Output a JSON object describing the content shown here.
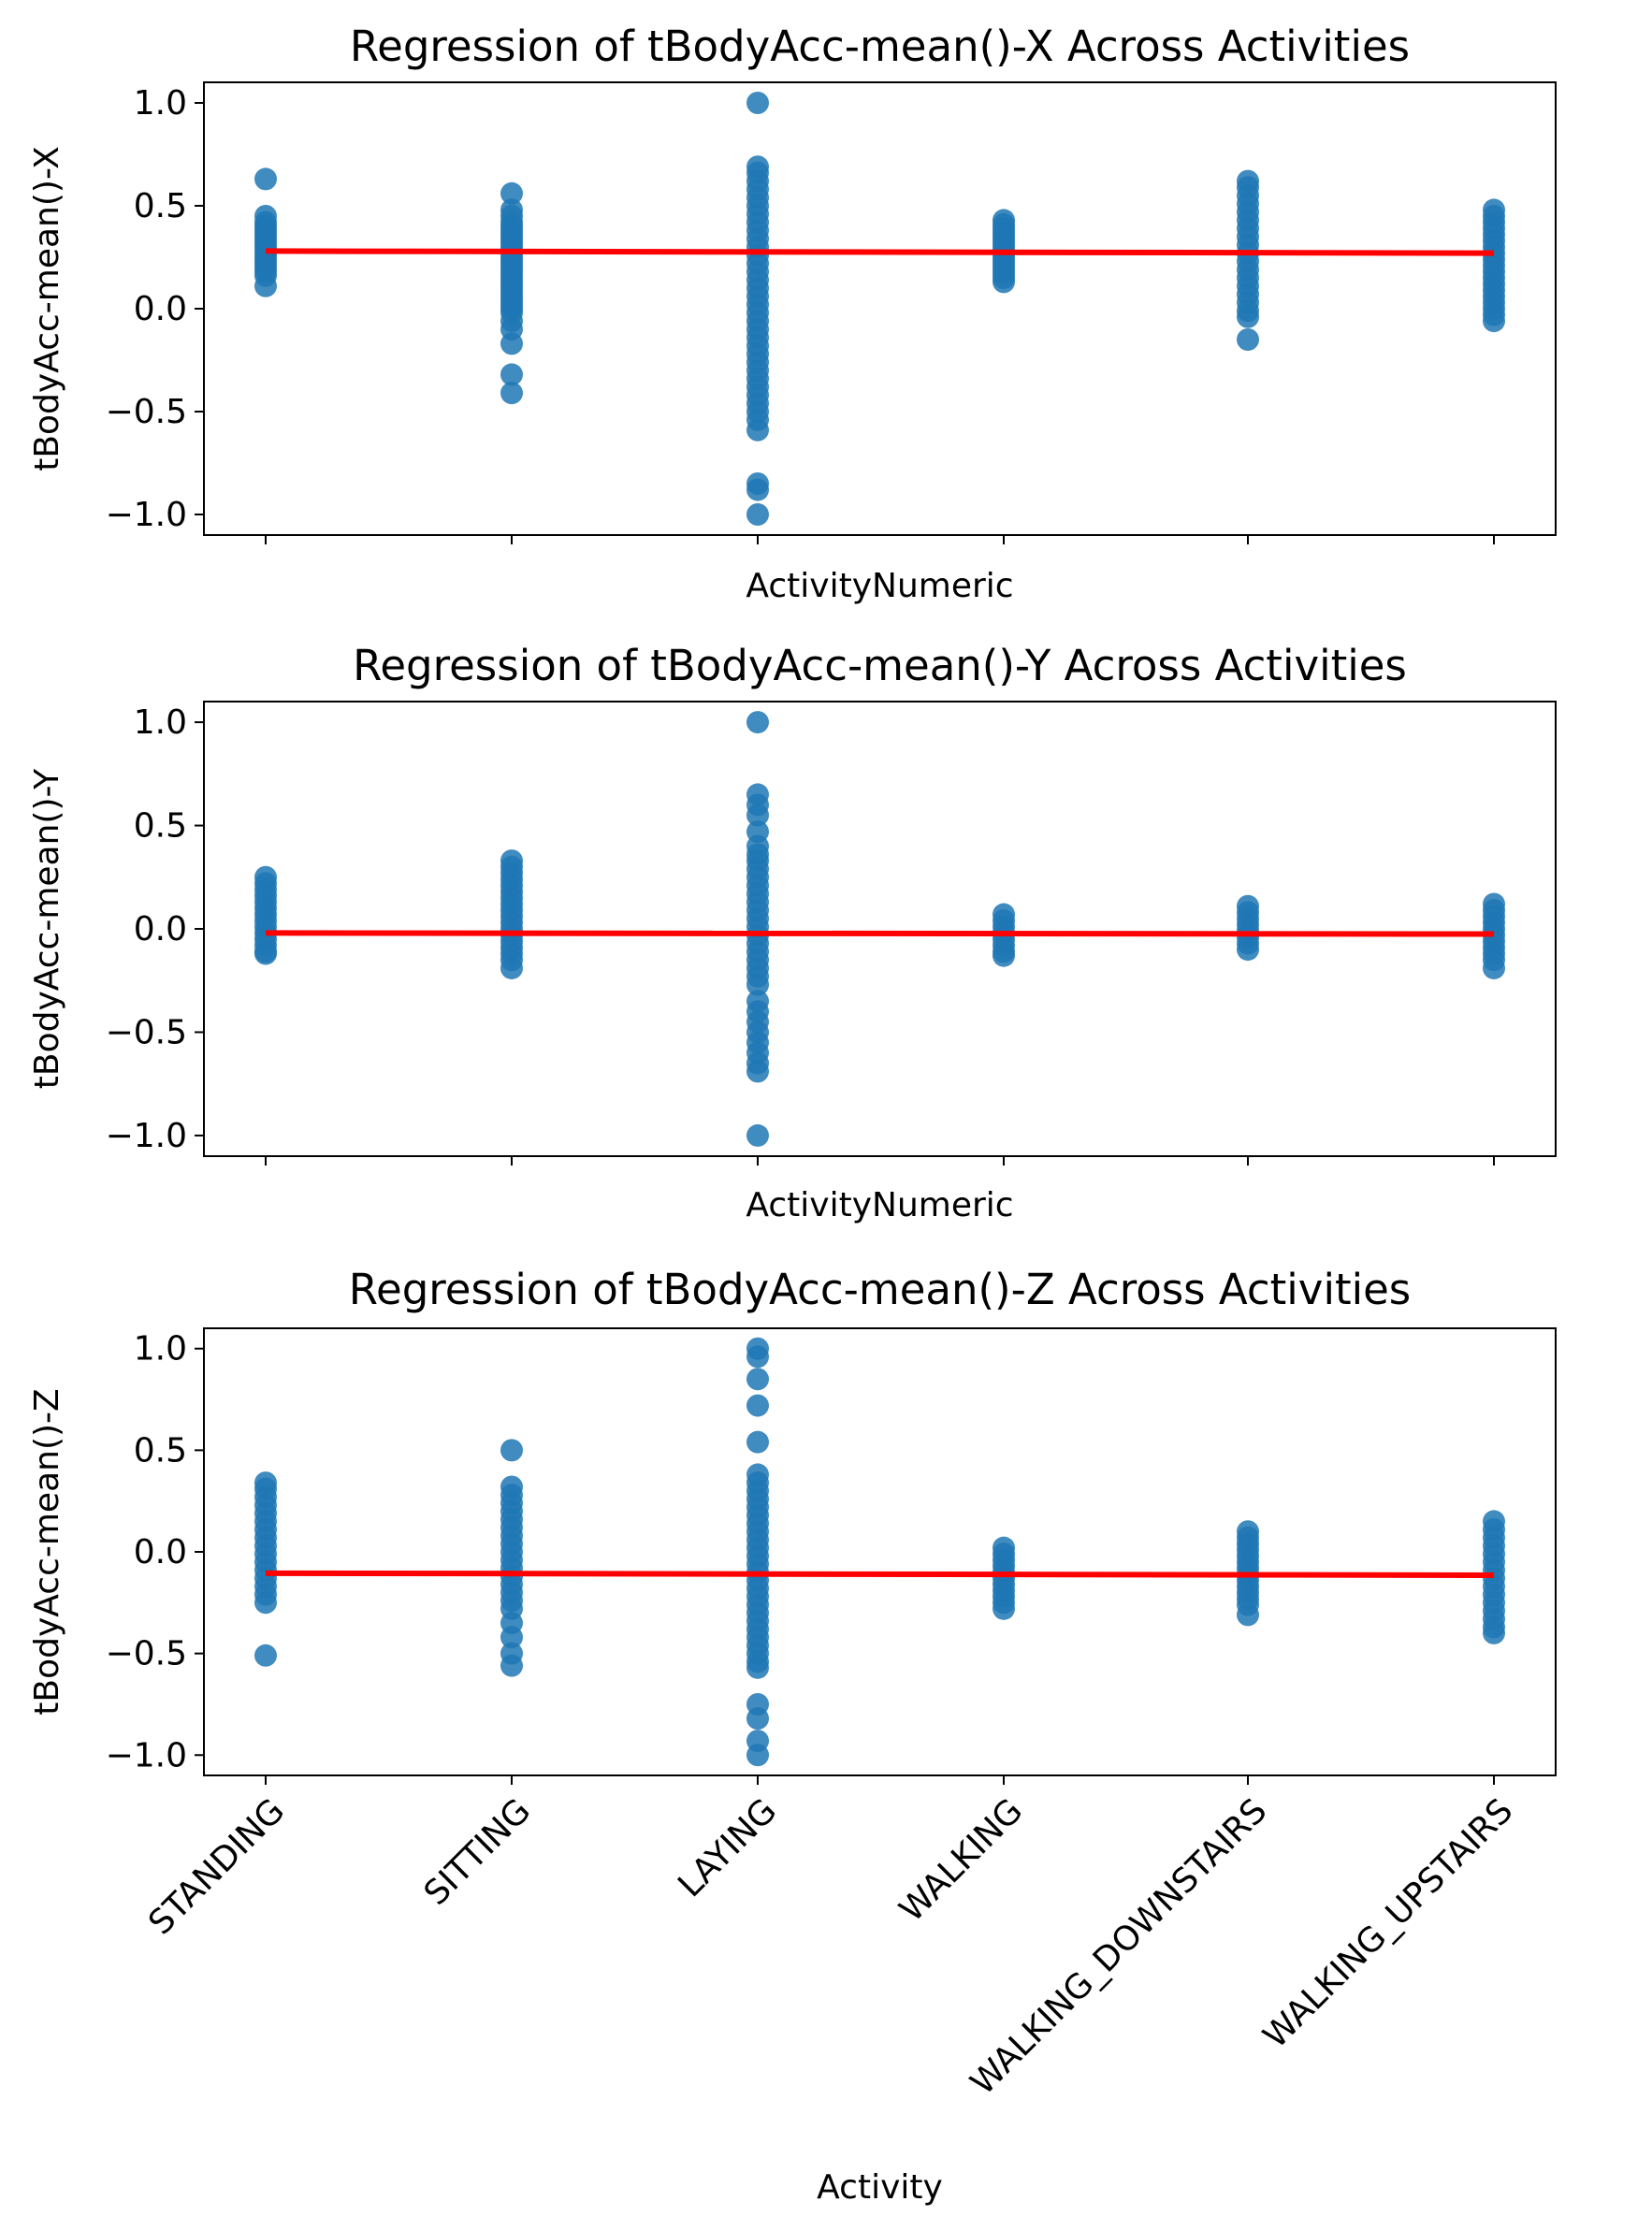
{
  "colors": {
    "points": "#1f77b4",
    "regression_line": "#ff0000",
    "axes": "#000000",
    "background": "#ffffff"
  },
  "chart_data": [
    {
      "type": "scatter",
      "title": "Regression of tBodyAcc-mean()-X Across Activities",
      "xlabel": "ActivityNumeric",
      "ylabel": "tBodyAcc-mean()-X",
      "categories": [
        "STANDING",
        "SITTING",
        "LAYING",
        "WALKING",
        "WALKING_DOWNSTAIRS",
        "WALKING_UPSTAIRS"
      ],
      "show_category_labels": false,
      "ylim": [
        -1.1,
        1.1
      ],
      "yticks": [
        -1.0,
        -0.5,
        0.0,
        0.5,
        1.0
      ],
      "ytick_labels": [
        "−1.0",
        "−0.5",
        "0.0",
        "0.5",
        "1.0"
      ],
      "grid": false,
      "points_by_category": [
        [
          0.63,
          0.45,
          0.42,
          0.4,
          0.38,
          0.36,
          0.34,
          0.32,
          0.3,
          0.28,
          0.26,
          0.24,
          0.22,
          0.2,
          0.18,
          0.16,
          0.11
        ],
        [
          0.56,
          0.48,
          0.45,
          0.42,
          0.4,
          0.38,
          0.36,
          0.34,
          0.32,
          0.3,
          0.28,
          0.26,
          0.24,
          0.22,
          0.2,
          0.18,
          0.16,
          0.14,
          0.12,
          0.1,
          0.08,
          0.06,
          0.04,
          0.02,
          0.0,
          -0.02,
          -0.06,
          -0.1,
          -0.17,
          -0.32,
          -0.41
        ],
        [
          1.0,
          0.69,
          0.66,
          0.62,
          0.58,
          0.54,
          0.5,
          0.46,
          0.42,
          0.38,
          0.34,
          0.3,
          0.26,
          0.22,
          0.18,
          0.14,
          0.1,
          0.06,
          0.02,
          -0.02,
          -0.06,
          -0.1,
          -0.14,
          -0.18,
          -0.22,
          -0.26,
          -0.3,
          -0.34,
          -0.38,
          -0.42,
          -0.46,
          -0.5,
          -0.54,
          -0.59,
          -0.85,
          -0.88,
          -1.0
        ],
        [
          0.43,
          0.41,
          0.39,
          0.37,
          0.35,
          0.33,
          0.31,
          0.29,
          0.27,
          0.25,
          0.23,
          0.21,
          0.19,
          0.17,
          0.15,
          0.13
        ],
        [
          0.62,
          0.59,
          0.55,
          0.51,
          0.47,
          0.43,
          0.39,
          0.35,
          0.31,
          0.27,
          0.23,
          0.19,
          0.15,
          0.11,
          0.07,
          0.03,
          -0.01,
          -0.04,
          -0.15
        ],
        [
          0.48,
          0.45,
          0.42,
          0.39,
          0.36,
          0.33,
          0.3,
          0.27,
          0.24,
          0.21,
          0.18,
          0.15,
          0.12,
          0.09,
          0.06,
          0.03,
          0.0,
          -0.03,
          -0.06
        ]
      ],
      "regression": {
        "y_start": 0.28,
        "y_end": 0.27
      }
    },
    {
      "type": "scatter",
      "title": "Regression of tBodyAcc-mean()-Y Across Activities",
      "xlabel": "ActivityNumeric",
      "ylabel": "tBodyAcc-mean()-Y",
      "categories": [
        "STANDING",
        "SITTING",
        "LAYING",
        "WALKING",
        "WALKING_DOWNSTAIRS",
        "WALKING_UPSTAIRS"
      ],
      "show_category_labels": false,
      "ylim": [
        -1.1,
        1.1
      ],
      "yticks": [
        -1.0,
        -0.5,
        0.0,
        0.5,
        1.0
      ],
      "ytick_labels": [
        "−1.0",
        "−0.5",
        "0.0",
        "0.5",
        "1.0"
      ],
      "grid": false,
      "points_by_category": [
        [
          0.25,
          0.22,
          0.19,
          0.16,
          0.13,
          0.1,
          0.07,
          0.04,
          0.01,
          -0.02,
          -0.05,
          -0.08,
          -0.11,
          -0.12
        ],
        [
          0.33,
          0.3,
          0.27,
          0.24,
          0.21,
          0.18,
          0.15,
          0.12,
          0.09,
          0.06,
          0.03,
          0.0,
          -0.03,
          -0.06,
          -0.09,
          -0.12,
          -0.15,
          -0.19
        ],
        [
          1.0,
          0.65,
          0.6,
          0.55,
          0.47,
          0.4,
          0.36,
          0.33,
          0.29,
          0.25,
          0.21,
          0.17,
          0.13,
          0.09,
          0.05,
          0.01,
          -0.03,
          -0.07,
          -0.11,
          -0.15,
          -0.19,
          -0.23,
          -0.27,
          -0.35,
          -0.4,
          -0.45,
          -0.5,
          -0.55,
          -0.6,
          -0.65,
          -0.69,
          -1.0
        ],
        [
          0.07,
          0.04,
          0.01,
          -0.02,
          -0.05,
          -0.08,
          -0.11,
          -0.13
        ],
        [
          0.11,
          0.08,
          0.05,
          0.02,
          -0.01,
          -0.04,
          -0.07,
          -0.1
        ],
        [
          0.12,
          0.09,
          0.06,
          0.03,
          0.0,
          -0.03,
          -0.06,
          -0.09,
          -0.12,
          -0.15,
          -0.19
        ]
      ],
      "regression": {
        "y_start": -0.02,
        "y_end": -0.025
      }
    },
    {
      "type": "scatter",
      "title": "Regression of tBodyAcc-mean()-Z Across Activities",
      "xlabel": "Activity",
      "ylabel": "tBodyAcc-mean()-Z",
      "categories": [
        "STANDING",
        "SITTING",
        "LAYING",
        "WALKING",
        "WALKING_DOWNSTAIRS",
        "WALKING_UPSTAIRS"
      ],
      "show_category_labels": true,
      "ylim": [
        -1.1,
        1.1
      ],
      "yticks": [
        -1.0,
        -0.5,
        0.0,
        0.5,
        1.0
      ],
      "ytick_labels": [
        "−1.0",
        "−0.5",
        "0.0",
        "0.5",
        "1.0"
      ],
      "grid": false,
      "points_by_category": [
        [
          0.34,
          0.31,
          0.27,
          0.23,
          0.19,
          0.15,
          0.11,
          0.07,
          0.03,
          -0.01,
          -0.05,
          -0.09,
          -0.13,
          -0.17,
          -0.21,
          -0.25,
          -0.51
        ],
        [
          0.5,
          0.32,
          0.28,
          0.24,
          0.2,
          0.16,
          0.12,
          0.08,
          0.04,
          0.0,
          -0.04,
          -0.08,
          -0.12,
          -0.16,
          -0.2,
          -0.24,
          -0.28,
          -0.35,
          -0.42,
          -0.5,
          -0.56
        ],
        [
          1.0,
          0.96,
          0.85,
          0.72,
          0.54,
          0.38,
          0.34,
          0.3,
          0.26,
          0.22,
          0.18,
          0.14,
          0.1,
          0.06,
          0.02,
          -0.02,
          -0.06,
          -0.1,
          -0.14,
          -0.18,
          -0.22,
          -0.26,
          -0.3,
          -0.34,
          -0.38,
          -0.42,
          -0.46,
          -0.5,
          -0.54,
          -0.57,
          -0.75,
          -0.82,
          -0.93,
          -1.0
        ],
        [
          0.02,
          -0.01,
          -0.04,
          -0.07,
          -0.1,
          -0.13,
          -0.16,
          -0.19,
          -0.22,
          -0.25,
          -0.28
        ],
        [
          0.1,
          0.07,
          0.04,
          0.01,
          -0.02,
          -0.05,
          -0.08,
          -0.11,
          -0.14,
          -0.17,
          -0.2,
          -0.23,
          -0.26,
          -0.31
        ],
        [
          0.15,
          0.11,
          0.07,
          0.03,
          -0.01,
          -0.05,
          -0.09,
          -0.13,
          -0.17,
          -0.21,
          -0.25,
          -0.29,
          -0.33,
          -0.37,
          -0.4
        ]
      ],
      "regression": {
        "y_start": -0.105,
        "y_end": -0.115
      }
    }
  ]
}
